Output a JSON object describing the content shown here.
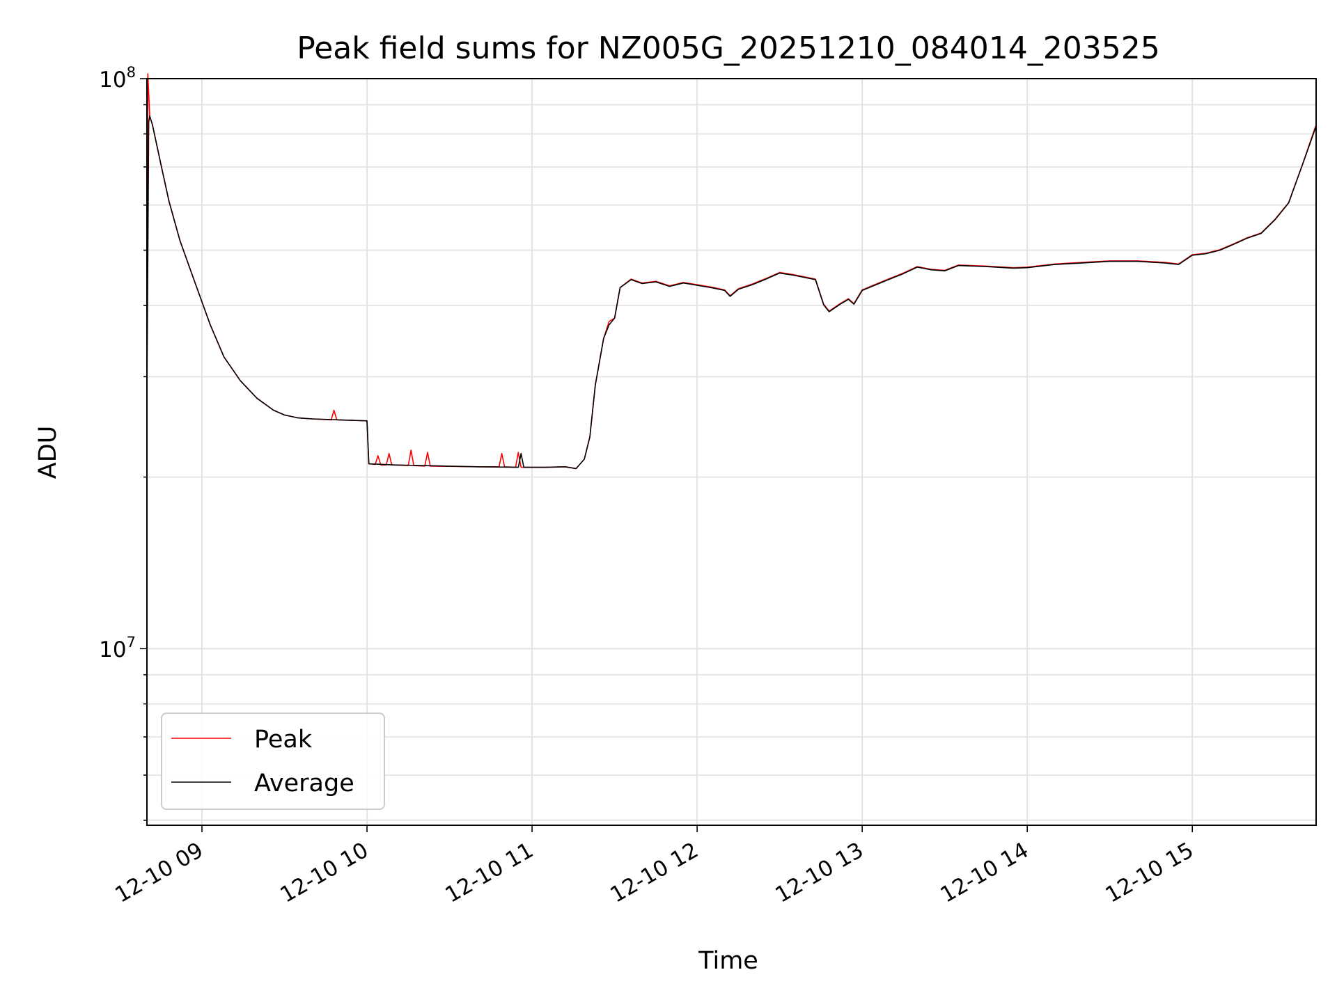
{
  "chart_data": {
    "type": "line",
    "title": "Peak field sums for NZ005G_20251210_084014_203525",
    "xlabel": "Time",
    "ylabel": "ADU",
    "yscale": "log",
    "ylim": [
      4900000,
      100000000
    ],
    "xlim": [
      "2025-12-10 08:40",
      "2025-12-10 15:45"
    ],
    "x_ticks": [
      {
        "t": "2025-12-10 09:00",
        "label": "12-10 09"
      },
      {
        "t": "2025-12-10 10:00",
        "label": "12-10 10"
      },
      {
        "t": "2025-12-10 11:00",
        "label": "12-10 11"
      },
      {
        "t": "2025-12-10 12:00",
        "label": "12-10 12"
      },
      {
        "t": "2025-12-10 13:00",
        "label": "12-10 13"
      },
      {
        "t": "2025-12-10 14:00",
        "label": "12-10 14"
      },
      {
        "t": "2025-12-10 15:00",
        "label": "12-10 15"
      }
    ],
    "y_ticks": [
      {
        "value": 10000000,
        "base": "10",
        "exp": "7"
      },
      {
        "value": 100000000,
        "base": "10",
        "exp": "8"
      }
    ],
    "grid": true,
    "legend_position": "lower-left",
    "series": [
      {
        "name": "Peak",
        "color": "#ff0000",
        "points": [
          [
            "2025-12-10 08:40",
            30000000
          ],
          [
            "2025-12-10 08:40:20",
            102000000
          ],
          [
            "2025-12-10 08:41",
            86000000
          ],
          [
            "2025-12-10 08:42",
            83000000
          ],
          [
            "2025-12-10 08:45",
            71000000
          ],
          [
            "2025-12-10 08:48",
            61000000
          ],
          [
            "2025-12-10 08:52",
            52000000
          ],
          [
            "2025-12-10 08:57",
            44500000
          ],
          [
            "2025-12-10 09:03",
            37000000
          ],
          [
            "2025-12-10 09:08",
            32500000
          ],
          [
            "2025-12-10 09:14",
            29500000
          ],
          [
            "2025-12-10 09:20",
            27500000
          ],
          [
            "2025-12-10 09:26",
            26200000
          ],
          [
            "2025-12-10 09:30",
            25700000
          ],
          [
            "2025-12-10 09:35",
            25400000
          ],
          [
            "2025-12-10 09:40",
            25300000
          ],
          [
            "2025-12-10 09:47",
            25200000
          ],
          [
            "2025-12-10 09:48",
            26200000
          ],
          [
            "2025-12-10 09:49",
            25200000
          ],
          [
            "2025-12-10 09:55",
            25150000
          ],
          [
            "2025-12-10 10:00",
            25100000
          ],
          [
            "2025-12-10 10:00:40",
            21100000
          ],
          [
            "2025-12-10 10:03",
            21050000
          ],
          [
            "2025-12-10 10:04",
            21800000
          ],
          [
            "2025-12-10 10:05",
            21000000
          ],
          [
            "2025-12-10 10:07",
            21000000
          ],
          [
            "2025-12-10 10:08",
            22000000
          ],
          [
            "2025-12-10 10:09",
            21000000
          ],
          [
            "2025-12-10 10:15",
            20950000
          ],
          [
            "2025-12-10 10:16",
            22300000
          ],
          [
            "2025-12-10 10:17",
            20950000
          ],
          [
            "2025-12-10 10:21",
            20900000
          ],
          [
            "2025-12-10 10:22",
            22100000
          ],
          [
            "2025-12-10 10:23",
            20900000
          ],
          [
            "2025-12-10 10:40",
            20850000
          ],
          [
            "2025-12-10 10:48",
            20850000
          ],
          [
            "2025-12-10 10:49",
            22000000
          ],
          [
            "2025-12-10 10:50",
            20850000
          ],
          [
            "2025-12-10 10:54",
            20800000
          ],
          [
            "2025-12-10 10:55",
            22100000
          ],
          [
            "2025-12-10 10:56",
            20800000
          ],
          [
            "2025-12-10 11:05",
            20800000
          ],
          [
            "2025-12-10 11:12",
            20850000
          ],
          [
            "2025-12-10 11:16",
            20700000
          ],
          [
            "2025-12-10 11:19",
            21500000
          ],
          [
            "2025-12-10 11:21",
            23500000
          ],
          [
            "2025-12-10 11:23",
            29000000
          ],
          [
            "2025-12-10 11:26",
            35000000
          ],
          [
            "2025-12-10 11:28",
            37500000
          ],
          [
            "2025-12-10 11:30",
            38000000
          ],
          [
            "2025-12-10 11:32",
            43000000
          ],
          [
            "2025-12-10 11:36",
            44500000
          ],
          [
            "2025-12-10 11:40",
            43800000
          ],
          [
            "2025-12-10 11:45",
            44100000
          ],
          [
            "2025-12-10 11:50",
            43300000
          ],
          [
            "2025-12-10 11:55",
            43900000
          ],
          [
            "2025-12-10 12:00",
            43500000
          ],
          [
            "2025-12-10 12:05",
            43100000
          ],
          [
            "2025-12-10 12:10",
            42600000
          ],
          [
            "2025-12-10 12:12",
            41600000
          ],
          [
            "2025-12-10 12:15",
            42800000
          ],
          [
            "2025-12-10 12:20",
            43600000
          ],
          [
            "2025-12-10 12:25",
            44600000
          ],
          [
            "2025-12-10 12:30",
            45700000
          ],
          [
            "2025-12-10 12:35",
            45300000
          ],
          [
            "2025-12-10 12:40",
            44800000
          ],
          [
            "2025-12-10 12:43",
            44500000
          ],
          [
            "2025-12-10 12:46",
            40200000
          ],
          [
            "2025-12-10 12:48",
            39100000
          ],
          [
            "2025-12-10 12:52",
            40300000
          ],
          [
            "2025-12-10 12:55",
            41100000
          ],
          [
            "2025-12-10 12:57",
            40300000
          ],
          [
            "2025-12-10 13:00",
            42600000
          ],
          [
            "2025-12-10 13:05",
            43600000
          ],
          [
            "2025-12-10 13:10",
            44600000
          ],
          [
            "2025-12-10 13:15",
            45600000
          ],
          [
            "2025-12-10 13:20",
            46800000
          ],
          [
            "2025-12-10 13:25",
            46300000
          ],
          [
            "2025-12-10 13:30",
            46100000
          ],
          [
            "2025-12-10 13:35",
            47100000
          ],
          [
            "2025-12-10 13:45",
            46900000
          ],
          [
            "2025-12-10 13:55",
            46600000
          ],
          [
            "2025-12-10 14:00",
            46700000
          ],
          [
            "2025-12-10 14:10",
            47300000
          ],
          [
            "2025-12-10 14:20",
            47600000
          ],
          [
            "2025-12-10 14:30",
            47900000
          ],
          [
            "2025-12-10 14:40",
            47900000
          ],
          [
            "2025-12-10 14:50",
            47600000
          ],
          [
            "2025-12-10 14:55",
            47300000
          ],
          [
            "2025-12-10 15:00",
            49100000
          ],
          [
            "2025-12-10 15:05",
            49400000
          ],
          [
            "2025-12-10 15:10",
            50100000
          ],
          [
            "2025-12-10 15:15",
            51300000
          ],
          [
            "2025-12-10 15:20",
            52600000
          ],
          [
            "2025-12-10 15:25",
            53600000
          ],
          [
            "2025-12-10 15:30",
            56600000
          ],
          [
            "2025-12-10 15:35",
            60600000
          ],
          [
            "2025-12-10 15:40",
            70600000
          ],
          [
            "2025-12-10 15:45",
            83000000
          ]
        ]
      },
      {
        "name": "Average",
        "color": "#000000",
        "points": [
          [
            "2025-12-10 08:40",
            28000000
          ],
          [
            "2025-12-10 08:40:40",
            84000000
          ],
          [
            "2025-12-10 08:41",
            86000000
          ],
          [
            "2025-12-10 08:42",
            83000000
          ],
          [
            "2025-12-10 08:45",
            71000000
          ],
          [
            "2025-12-10 08:48",
            61000000
          ],
          [
            "2025-12-10 08:52",
            52000000
          ],
          [
            "2025-12-10 08:57",
            44500000
          ],
          [
            "2025-12-10 09:03",
            37000000
          ],
          [
            "2025-12-10 09:08",
            32500000
          ],
          [
            "2025-12-10 09:14",
            29500000
          ],
          [
            "2025-12-10 09:20",
            27500000
          ],
          [
            "2025-12-10 09:26",
            26200000
          ],
          [
            "2025-12-10 09:30",
            25700000
          ],
          [
            "2025-12-10 09:35",
            25400000
          ],
          [
            "2025-12-10 09:40",
            25300000
          ],
          [
            "2025-12-10 09:50",
            25200000
          ],
          [
            "2025-12-10 10:00",
            25100000
          ],
          [
            "2025-12-10 10:00:40",
            21100000
          ],
          [
            "2025-12-10 10:10",
            21000000
          ],
          [
            "2025-12-10 10:20",
            20950000
          ],
          [
            "2025-12-10 10:30",
            20900000
          ],
          [
            "2025-12-10 10:40",
            20850000
          ],
          [
            "2025-12-10 10:50",
            20820000
          ],
          [
            "2025-12-10 10:55",
            20800000
          ],
          [
            "2025-12-10 10:56",
            22000000
          ],
          [
            "2025-12-10 10:57",
            20800000
          ],
          [
            "2025-12-10 11:05",
            20800000
          ],
          [
            "2025-12-10 11:12",
            20850000
          ],
          [
            "2025-12-10 11:16",
            20700000
          ],
          [
            "2025-12-10 11:19",
            21500000
          ],
          [
            "2025-12-10 11:21",
            23500000
          ],
          [
            "2025-12-10 11:23",
            29000000
          ],
          [
            "2025-12-10 11:26",
            35000000
          ],
          [
            "2025-12-10 11:28",
            37000000
          ],
          [
            "2025-12-10 11:30",
            38000000
          ],
          [
            "2025-12-10 11:32",
            43000000
          ],
          [
            "2025-12-10 11:36",
            44400000
          ],
          [
            "2025-12-10 11:40",
            43700000
          ],
          [
            "2025-12-10 11:45",
            44000000
          ],
          [
            "2025-12-10 11:50",
            43200000
          ],
          [
            "2025-12-10 11:55",
            43800000
          ],
          [
            "2025-12-10 12:00",
            43400000
          ],
          [
            "2025-12-10 12:05",
            43000000
          ],
          [
            "2025-12-10 12:10",
            42500000
          ],
          [
            "2025-12-10 12:12",
            41500000
          ],
          [
            "2025-12-10 12:15",
            42700000
          ],
          [
            "2025-12-10 12:20",
            43500000
          ],
          [
            "2025-12-10 12:25",
            44500000
          ],
          [
            "2025-12-10 12:30",
            45600000
          ],
          [
            "2025-12-10 12:35",
            45200000
          ],
          [
            "2025-12-10 12:40",
            44700000
          ],
          [
            "2025-12-10 12:43",
            44400000
          ],
          [
            "2025-12-10 12:46",
            40100000
          ],
          [
            "2025-12-10 12:48",
            39000000
          ],
          [
            "2025-12-10 12:52",
            40200000
          ],
          [
            "2025-12-10 12:55",
            41000000
          ],
          [
            "2025-12-10 12:57",
            40200000
          ],
          [
            "2025-12-10 13:00",
            42500000
          ],
          [
            "2025-12-10 13:05",
            43500000
          ],
          [
            "2025-12-10 13:10",
            44500000
          ],
          [
            "2025-12-10 13:15",
            45500000
          ],
          [
            "2025-12-10 13:20",
            46700000
          ],
          [
            "2025-12-10 13:25",
            46200000
          ],
          [
            "2025-12-10 13:30",
            46000000
          ],
          [
            "2025-12-10 13:35",
            47000000
          ],
          [
            "2025-12-10 13:45",
            46800000
          ],
          [
            "2025-12-10 13:55",
            46500000
          ],
          [
            "2025-12-10 14:00",
            46600000
          ],
          [
            "2025-12-10 14:10",
            47200000
          ],
          [
            "2025-12-10 14:20",
            47500000
          ],
          [
            "2025-12-10 14:30",
            47800000
          ],
          [
            "2025-12-10 14:40",
            47800000
          ],
          [
            "2025-12-10 14:50",
            47500000
          ],
          [
            "2025-12-10 14:55",
            47200000
          ],
          [
            "2025-12-10 15:00",
            49000000
          ],
          [
            "2025-12-10 15:05",
            49300000
          ],
          [
            "2025-12-10 15:10",
            50000000
          ],
          [
            "2025-12-10 15:15",
            51200000
          ],
          [
            "2025-12-10 15:20",
            52500000
          ],
          [
            "2025-12-10 15:25",
            53500000
          ],
          [
            "2025-12-10 15:30",
            56500000
          ],
          [
            "2025-12-10 15:35",
            60500000
          ],
          [
            "2025-12-10 15:40",
            70500000
          ],
          [
            "2025-12-10 15:45",
            82500000
          ]
        ]
      }
    ]
  }
}
